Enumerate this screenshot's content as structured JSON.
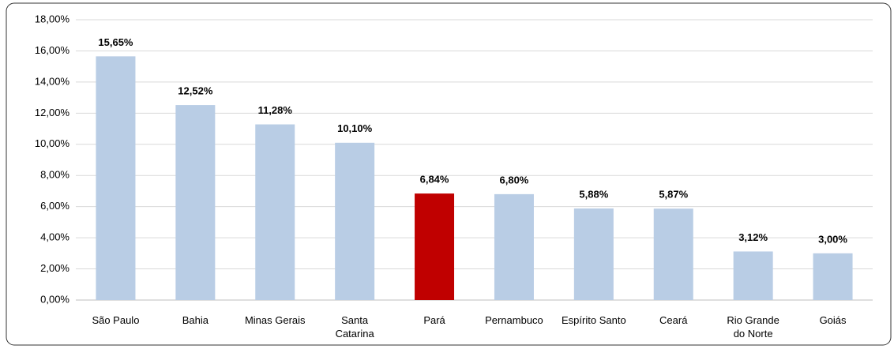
{
  "chart_data": {
    "type": "bar",
    "categories": [
      "São Paulo",
      "Bahia",
      "Minas Gerais",
      "Santa\nCatarina",
      "Pará",
      "Pernambuco",
      "Espírito Santo",
      "Ceará",
      "Rio Grande\ndo Norte",
      "Goiás"
    ],
    "values": [
      15.65,
      12.52,
      11.28,
      10.1,
      6.84,
      6.8,
      5.88,
      5.87,
      3.12,
      3.0
    ],
    "value_labels": [
      "15,65%",
      "12,52%",
      "11,28%",
      "10,10%",
      "6,84%",
      "6,80%",
      "5,88%",
      "5,87%",
      "3,12%",
      "3,00%"
    ],
    "colors": [
      "#b9cde5",
      "#b9cde5",
      "#b9cde5",
      "#b9cde5",
      "#c00000",
      "#b9cde5",
      "#b9cde5",
      "#b9cde5",
      "#b9cde5",
      "#b9cde5"
    ],
    "ylim": [
      0,
      18
    ],
    "yticks": [
      {
        "value": 0,
        "label": "0,00%"
      },
      {
        "value": 2,
        "label": "2,00%"
      },
      {
        "value": 4,
        "label": "4,00%"
      },
      {
        "value": 6,
        "label": "6,00%"
      },
      {
        "value": 8,
        "label": "8,00%"
      },
      {
        "value": 10,
        "label": "10,00%"
      },
      {
        "value": 12,
        "label": "12,00%"
      },
      {
        "value": 14,
        "label": "14,00%"
      },
      {
        "value": 16,
        "label": "16,00%"
      },
      {
        "value": 18,
        "label": "18,00%"
      }
    ],
    "grid": true
  }
}
